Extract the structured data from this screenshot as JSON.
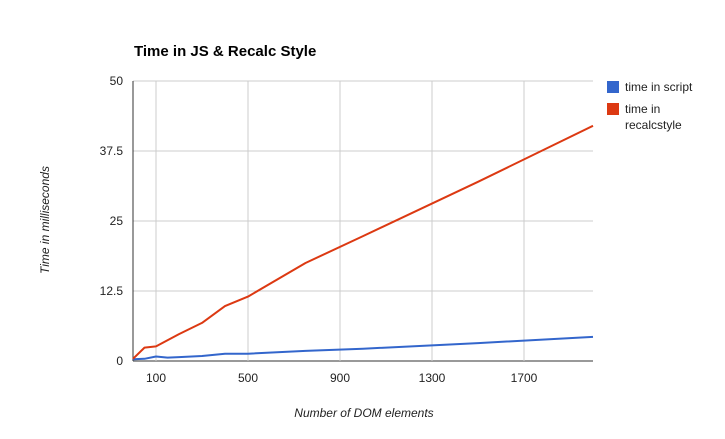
{
  "chart_data": {
    "type": "line",
    "title": "Time in JS & Recalc Style",
    "xlabel": "Number of DOM elements",
    "ylabel": "Time in milliseconds",
    "xlim": [
      0,
      2000
    ],
    "ylim": [
      0,
      50
    ],
    "xticks": [
      100,
      500,
      900,
      1300,
      1700
    ],
    "xtick_labels": [
      "100",
      "500",
      "900",
      "1300",
      "1700"
    ],
    "yticks": [
      0,
      12.5,
      25,
      37.5,
      50
    ],
    "ytick_labels": [
      "0",
      "12.5",
      "25",
      "37.5",
      "50"
    ],
    "grid": true,
    "legend_position": "right",
    "series": [
      {
        "name": "time in script",
        "color": "#3366cc",
        "x": [
          0,
          50,
          100,
          150,
          200,
          300,
          400,
          500,
          750,
          1000,
          1500,
          2000
        ],
        "y": [
          0.3,
          0.4,
          0.8,
          0.6,
          0.7,
          0.9,
          1.3,
          1.3,
          1.8,
          2.2,
          3.2,
          4.3
        ]
      },
      {
        "name": "time in recalcstyle",
        "legend_lines": [
          "time in",
          "recalcstyle"
        ],
        "color": "#dc3912",
        "x": [
          0,
          50,
          100,
          200,
          300,
          400,
          500,
          750,
          1000,
          1500,
          2000
        ],
        "y": [
          0.4,
          2.4,
          2.6,
          4.8,
          6.8,
          9.8,
          11.5,
          17.5,
          22.3,
          32.0,
          42.0
        ]
      }
    ]
  }
}
